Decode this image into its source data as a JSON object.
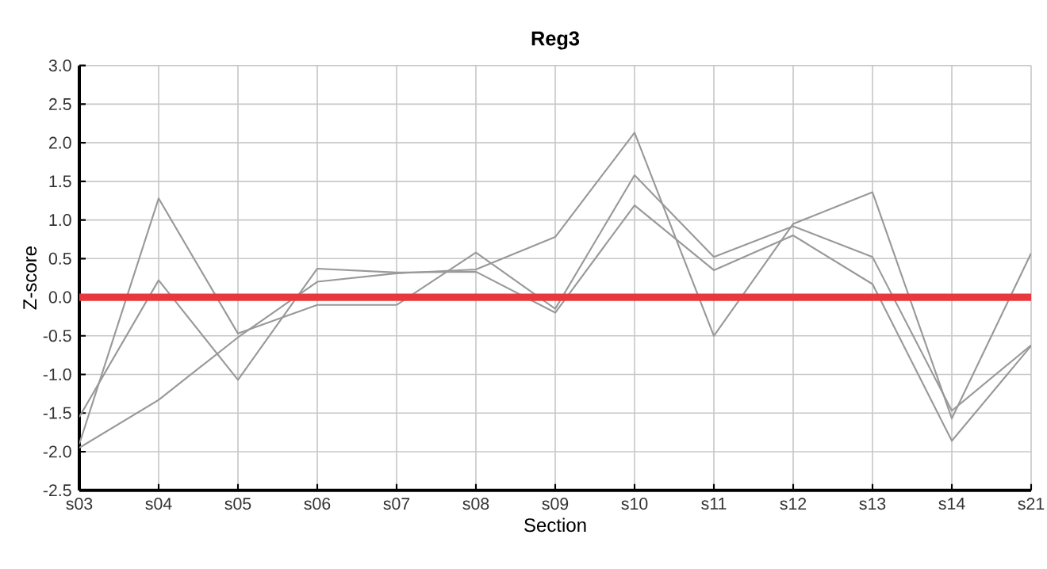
{
  "chart_data": {
    "type": "line",
    "title": "Reg3",
    "xlabel": "Section",
    "ylabel": "Z-score",
    "categories": [
      "s03",
      "s04",
      "s05",
      "s06",
      "s07",
      "s08",
      "s09",
      "s10",
      "s11",
      "s12",
      "s13",
      "s14",
      "s21"
    ],
    "series": [
      {
        "color": "#999999",
        "values": [
          -1.9,
          1.28,
          -0.47,
          -0.1,
          -0.1,
          0.58,
          -0.15,
          1.58,
          0.52,
          0.92,
          0.52,
          -1.47,
          -0.62
        ]
      },
      {
        "color": "#999999",
        "values": [
          -1.55,
          0.22,
          -1.07,
          0.37,
          0.32,
          0.33,
          -0.2,
          1.19,
          0.35,
          0.8,
          0.17,
          -1.86,
          -0.63
        ]
      },
      {
        "color": "#999999",
        "values": [
          -1.95,
          -1.33,
          -0.52,
          0.2,
          0.31,
          0.36,
          0.78,
          2.13,
          -0.5,
          0.95,
          1.36,
          -1.57,
          0.57
        ]
      }
    ],
    "ylim": [
      -2.5,
      3.0
    ],
    "yticks": [
      {
        "value": -2.5,
        "label": "-2.5"
      },
      {
        "value": -2,
        "label": "-2.0"
      },
      {
        "value": -1.5,
        "label": "-1.5"
      },
      {
        "value": -1,
        "label": "-1.0"
      },
      {
        "value": -0.5,
        "label": "-0.5"
      },
      {
        "value": 0,
        "label": "0.0"
      },
      {
        "value": 0.5,
        "label": "0.5"
      },
      {
        "value": 1,
        "label": "1.0"
      },
      {
        "value": 1.5,
        "label": "1.5"
      },
      {
        "value": 2,
        "label": "2.0"
      },
      {
        "value": 2.5,
        "label": "2.5"
      },
      {
        "value": 3,
        "label": "3.0"
      }
    ],
    "ref_lines": [
      {
        "axis": "y",
        "value": 0,
        "color": "#e8383d"
      }
    ],
    "grid": true,
    "marker": "none",
    "line_style": "solid"
  }
}
